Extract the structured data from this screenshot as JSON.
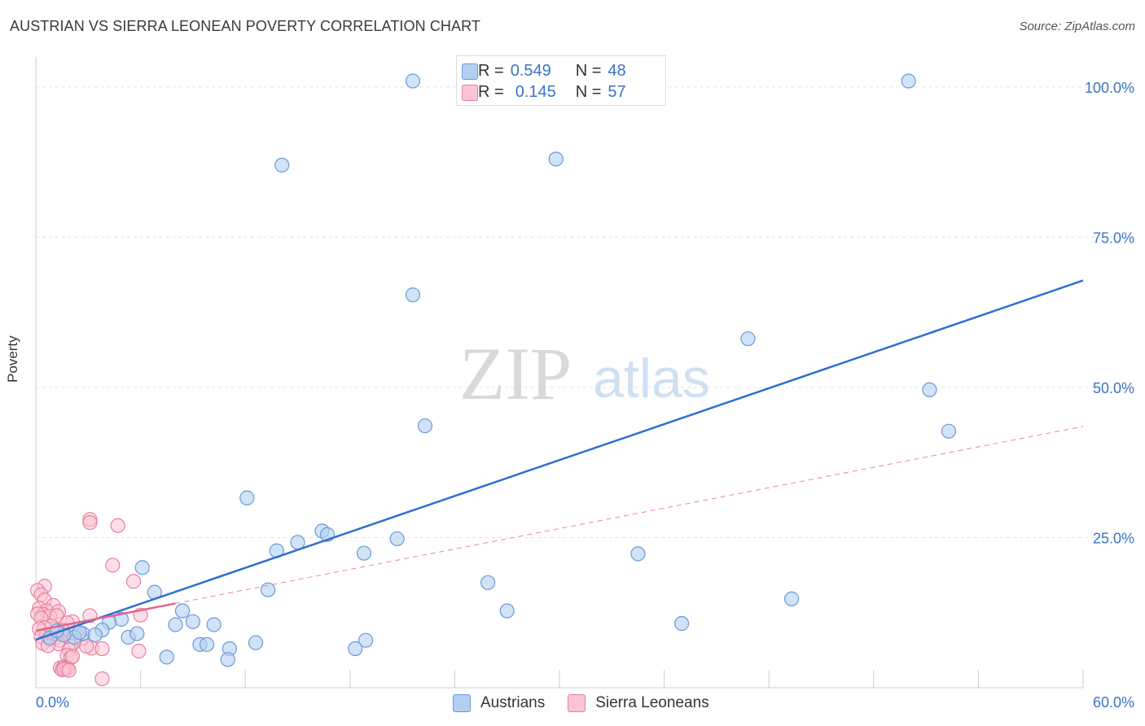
{
  "header": {
    "title": "AUSTRIAN VS SIERRA LEONEAN POVERTY CORRELATION CHART",
    "source": "Source: ZipAtlas.com"
  },
  "watermark": {
    "part1": "ZIP",
    "part2": "atlas"
  },
  "legend_top": {
    "rows": [
      {
        "r_label": "R =",
        "r_value": "0.549",
        "n_label": "N =",
        "n_value": "48",
        "color": "#a9c8f0"
      },
      {
        "r_label": "R =",
        "r_value": "0.145",
        "n_label": "N =",
        "n_value": "57",
        "color": "#f7b9cc"
      }
    ]
  },
  "legend_bottom": {
    "items": [
      "Austrians",
      "Sierra Leoneans"
    ]
  },
  "colors": {
    "blue_fill": "#b3d0f2",
    "blue_stroke": "#6a9ad6",
    "blue_line": "#2f6fcf",
    "pink_fill": "#f9c4d4",
    "pink_stroke": "#e87fa0",
    "pink_line": "#e4648e",
    "axis_text": "#3a74c4",
    "grid": "#e3e3e3"
  },
  "chart_data": {
    "type": "scatter",
    "title": "AUSTRIAN VS SIERRA LEONEAN POVERTY CORRELATION CHART",
    "xlabel": "",
    "ylabel": "Poverty",
    "xlim": [
      0,
      60
    ],
    "ylim": [
      0,
      105
    ],
    "x_tick_labels": [
      "0.0%",
      "60.0%"
    ],
    "y_ticks": [
      25,
      50,
      75,
      100
    ],
    "y_tick_labels": [
      "25.0%",
      "50.0%",
      "75.0%",
      "100.0%"
    ],
    "series": [
      {
        "name": "Austrians",
        "r": 0.549,
        "n": 48,
        "trend": {
          "x": [
            0,
            60
          ],
          "y": [
            8.0,
            67.8
          ],
          "style": "solid"
        },
        "points": [
          [
            21.6,
            101.0
          ],
          [
            50.0,
            101.0
          ],
          [
            14.1,
            87.0
          ],
          [
            29.8,
            88.0
          ],
          [
            21.6,
            65.4
          ],
          [
            40.8,
            58.1
          ],
          [
            51.2,
            49.6
          ],
          [
            52.3,
            42.7
          ],
          [
            22.3,
            43.6
          ],
          [
            12.1,
            31.6
          ],
          [
            16.4,
            26.1
          ],
          [
            16.7,
            25.5
          ],
          [
            15.0,
            24.2
          ],
          [
            20.7,
            24.8
          ],
          [
            13.8,
            22.8
          ],
          [
            18.8,
            22.4
          ],
          [
            34.5,
            22.3
          ],
          [
            6.1,
            20.0
          ],
          [
            25.9,
            17.5
          ],
          [
            6.8,
            15.9
          ],
          [
            13.3,
            16.3
          ],
          [
            27.0,
            12.8
          ],
          [
            8.4,
            12.8
          ],
          [
            43.3,
            14.8
          ],
          [
            4.9,
            11.4
          ],
          [
            4.2,
            10.9
          ],
          [
            9.0,
            11.0
          ],
          [
            8.0,
            10.5
          ],
          [
            10.2,
            10.5
          ],
          [
            37.0,
            10.7
          ],
          [
            3.8,
            9.6
          ],
          [
            2.7,
            9.0
          ],
          [
            3.4,
            8.8
          ],
          [
            2.2,
            8.4
          ],
          [
            5.3,
            8.4
          ],
          [
            5.8,
            9.0
          ],
          [
            9.4,
            7.2
          ],
          [
            9.8,
            7.2
          ],
          [
            12.6,
            7.5
          ],
          [
            18.9,
            7.9
          ],
          [
            11.1,
            6.5
          ],
          [
            18.3,
            6.5
          ],
          [
            7.5,
            5.1
          ],
          [
            11.0,
            4.7
          ],
          [
            1.6,
            8.8
          ],
          [
            0.8,
            8.3
          ],
          [
            2.5,
            9.2
          ],
          [
            1.2,
            9.5
          ]
        ]
      },
      {
        "name": "Sierra Leoneans",
        "r": 0.145,
        "n": 57,
        "trend": {
          "x": [
            0,
            60
          ],
          "y": [
            9.5,
            43.5
          ],
          "style": "dashed",
          "solid_until_x": 8.0
        },
        "points": [
          [
            3.1,
            28.0
          ],
          [
            3.1,
            27.5
          ],
          [
            4.7,
            27.0
          ],
          [
            4.4,
            20.4
          ],
          [
            5.6,
            17.7
          ],
          [
            0.5,
            16.9
          ],
          [
            0.1,
            16.2
          ],
          [
            0.3,
            15.5
          ],
          [
            0.5,
            14.6
          ],
          [
            1.0,
            13.7
          ],
          [
            0.2,
            13.2
          ],
          [
            0.6,
            12.8
          ],
          [
            1.3,
            12.7
          ],
          [
            0.4,
            12.2
          ],
          [
            0.8,
            11.9
          ],
          [
            1.2,
            12.0
          ],
          [
            0.1,
            12.3
          ],
          [
            0.3,
            11.6
          ],
          [
            3.1,
            12.0
          ],
          [
            6.0,
            12.1
          ],
          [
            2.1,
            11.0
          ],
          [
            0.9,
            10.3
          ],
          [
            1.8,
            10.8
          ],
          [
            0.5,
            10.0
          ],
          [
            1.5,
            9.6
          ],
          [
            0.2,
            9.8
          ],
          [
            1.0,
            9.0
          ],
          [
            2.3,
            9.2
          ],
          [
            0.6,
            8.8
          ],
          [
            1.6,
            8.7
          ],
          [
            0.3,
            8.5
          ],
          [
            2.6,
            8.2
          ],
          [
            1.1,
            8.3
          ],
          [
            0.8,
            8.0
          ],
          [
            1.4,
            7.9
          ],
          [
            2.2,
            7.6
          ],
          [
            0.4,
            7.4
          ],
          [
            1.3,
            7.3
          ],
          [
            3.2,
            6.6
          ],
          [
            2.0,
            6.9
          ],
          [
            0.7,
            7.0
          ],
          [
            2.9,
            6.9
          ],
          [
            1.9,
            6.3
          ],
          [
            5.9,
            6.1
          ],
          [
            3.8,
            6.5
          ],
          [
            1.8,
            5.4
          ],
          [
            2.0,
            5.0
          ],
          [
            2.1,
            5.2
          ],
          [
            1.4,
            3.3
          ],
          [
            1.6,
            3.5
          ],
          [
            1.7,
            3.3
          ],
          [
            1.5,
            3.0
          ],
          [
            1.8,
            3.2
          ],
          [
            1.6,
            3.1
          ],
          [
            1.9,
            2.9
          ],
          [
            3.8,
            1.5
          ],
          [
            1.2,
            9.0
          ]
        ]
      }
    ]
  }
}
